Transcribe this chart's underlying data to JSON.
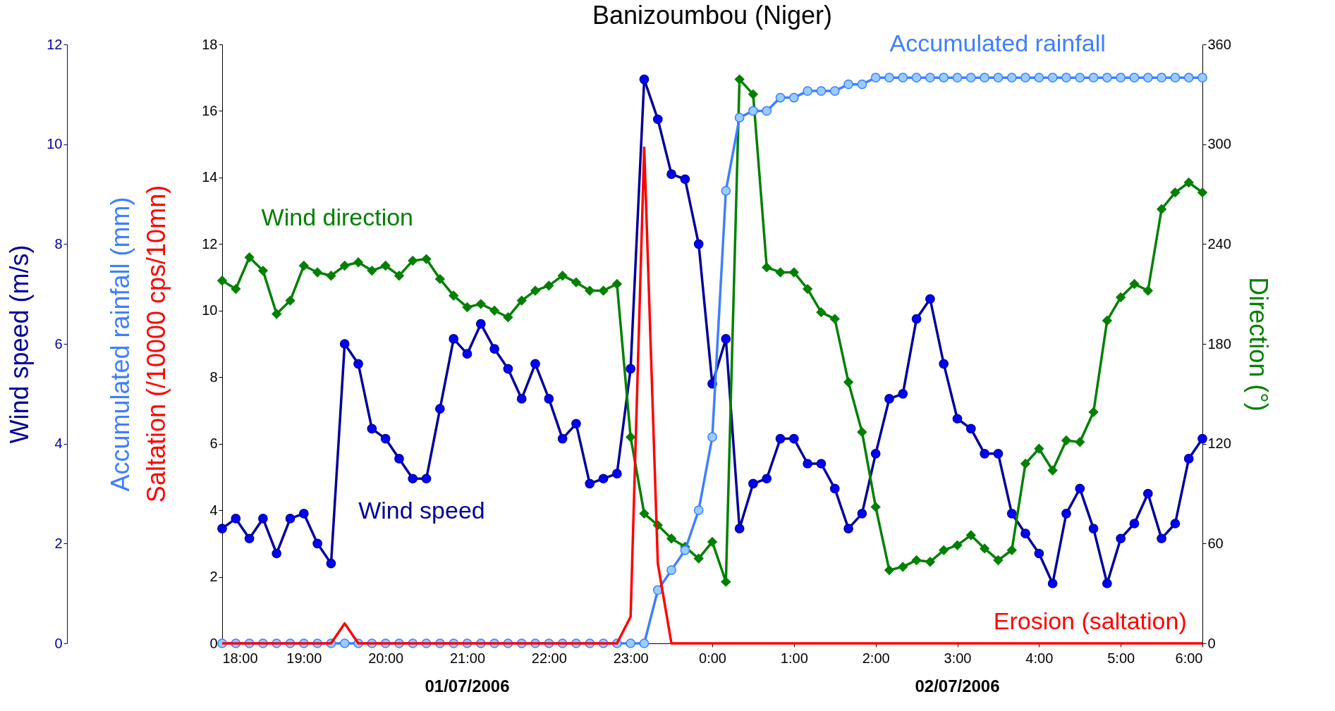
{
  "chart_data": {
    "type": "line",
    "title": "Banizoumbou (Niger)",
    "x": [
      "2006-07-01T18:00",
      "2006-07-01T18:10",
      "2006-07-01T18:20",
      "2006-07-01T18:30",
      "2006-07-01T18:40",
      "2006-07-01T18:50",
      "2006-07-01T19:00",
      "2006-07-01T19:10",
      "2006-07-01T19:20",
      "2006-07-01T19:30",
      "2006-07-01T19:40",
      "2006-07-01T19:50",
      "2006-07-01T20:00",
      "2006-07-01T20:10",
      "2006-07-01T20:20",
      "2006-07-01T20:30",
      "2006-07-01T20:40",
      "2006-07-01T20:50",
      "2006-07-01T21:00",
      "2006-07-01T21:10",
      "2006-07-01T21:20",
      "2006-07-01T21:30",
      "2006-07-01T21:40",
      "2006-07-01T21:50",
      "2006-07-01T22:00",
      "2006-07-01T22:10",
      "2006-07-01T22:20",
      "2006-07-01T22:30",
      "2006-07-01T22:40",
      "2006-07-01T22:50",
      "2006-07-01T23:00",
      "2006-07-01T23:10",
      "2006-07-01T23:20",
      "2006-07-01T23:30",
      "2006-07-01T23:40",
      "2006-07-01T23:50",
      "2006-07-02T00:00",
      "2006-07-02T00:10",
      "2006-07-02T00:20",
      "2006-07-02T00:30",
      "2006-07-02T00:40",
      "2006-07-02T00:50",
      "2006-07-02T01:00",
      "2006-07-02T01:10",
      "2006-07-02T01:20",
      "2006-07-02T01:30",
      "2006-07-02T01:40",
      "2006-07-02T01:50",
      "2006-07-02T02:00",
      "2006-07-02T02:10",
      "2006-07-02T02:20",
      "2006-07-02T02:30",
      "2006-07-02T02:40",
      "2006-07-02T02:50",
      "2006-07-02T03:00",
      "2006-07-02T03:10",
      "2006-07-02T03:20",
      "2006-07-02T03:30",
      "2006-07-02T03:40",
      "2006-07-02T03:50",
      "2006-07-02T04:00",
      "2006-07-02T04:10",
      "2006-07-02T04:20",
      "2006-07-02T04:30",
      "2006-07-02T04:40",
      "2006-07-02T04:50",
      "2006-07-02T05:00",
      "2006-07-02T05:10",
      "2006-07-02T05:20",
      "2006-07-02T05:30",
      "2006-07-02T05:40",
      "2006-07-02T05:50",
      "2006-07-02T06:00"
    ],
    "xlim": [
      "2006-07-01T18:00",
      "2006-07-02T06:00"
    ],
    "xticks": [
      {
        "value": "2006-07-01T18:00",
        "label": "18:00"
      },
      {
        "value": "2006-07-01T19:00",
        "label": "19:00"
      },
      {
        "value": "2006-07-01T20:00",
        "label": "20:00"
      },
      {
        "value": "2006-07-01T21:00",
        "label": "21:00"
      },
      {
        "value": "2006-07-01T22:00",
        "label": "22:00"
      },
      {
        "value": "2006-07-01T23:00",
        "label": "23:00"
      },
      {
        "value": "2006-07-02T00:00",
        "label": "0:00"
      },
      {
        "value": "2006-07-02T01:00",
        "label": "1:00"
      },
      {
        "value": "2006-07-02T02:00",
        "label": "2:00"
      },
      {
        "value": "2006-07-02T03:00",
        "label": "3:00"
      },
      {
        "value": "2006-07-02T04:00",
        "label": "4:00"
      },
      {
        "value": "2006-07-02T05:00",
        "label": "5:00"
      },
      {
        "value": "2006-07-02T06:00",
        "label": "6:00"
      }
    ],
    "ylabel": "Wind speed (m/s)",
    "ylim": [
      0,
      12
    ],
    "yticks": [
      0,
      2,
      4,
      6,
      8,
      10,
      12
    ],
    "y2label": "Direction (°)",
    "y2lim": [
      0,
      360
    ],
    "y2ticks": [
      0,
      60,
      120,
      180,
      240,
      300,
      360
    ],
    "y3label": "Accumulated rainfall (mm)",
    "y3lim": [
      0,
      18
    ],
    "y3ticks": [
      0,
      2,
      4,
      6,
      8,
      10,
      12,
      14,
      16,
      18
    ],
    "annotations": [
      "Saltation (/10000 cps/10mn)",
      "01/07/2006",
      "02/07/2006"
    ],
    "grid": false,
    "series": [
      {
        "name": "Wind speed",
        "color": "#000099",
        "axis": "y",
        "marker": "circle",
        "values": [
          2.3,
          2.5,
          2.1,
          2.5,
          1.8,
          2.5,
          2.6,
          2.0,
          1.6,
          6.0,
          5.6,
          4.3,
          4.1,
          3.7,
          3.3,
          3.3,
          4.7,
          6.1,
          5.8,
          6.4,
          5.9,
          5.5,
          4.9,
          5.6,
          4.9,
          4.1,
          4.4,
          3.2,
          3.3,
          3.4,
          5.5,
          11.3,
          10.5,
          9.4,
          9.3,
          8.0,
          5.2,
          6.1,
          2.3,
          3.2,
          3.3,
          4.1,
          4.1,
          3.6,
          3.6,
          3.1,
          2.3,
          2.6,
          3.8,
          4.9,
          5.0,
          6.5,
          6.9,
          5.6,
          4.5,
          4.3,
          3.8,
          3.8,
          2.6,
          2.2,
          1.8,
          1.2,
          2.6,
          3.1,
          2.3,
          1.2,
          2.1,
          2.4,
          3.0,
          2.1,
          2.4,
          3.7,
          4.1
        ]
      },
      {
        "name": "Wind direction",
        "color": "#008000",
        "axis": "y2",
        "marker": "diamond",
        "values": [
          218,
          213,
          232,
          224,
          198,
          206,
          227,
          223,
          221,
          227,
          229,
          224,
          227,
          221,
          230,
          231,
          219,
          209,
          202,
          204,
          200,
          196,
          206,
          212,
          215,
          221,
          217,
          212,
          212,
          216,
          124,
          78,
          71,
          63,
          58,
          51,
          61,
          37,
          339,
          330,
          226,
          223,
          223,
          213,
          199,
          195,
          157,
          127,
          82,
          44,
          46,
          50,
          49,
          56,
          59,
          65,
          57,
          50,
          56,
          108,
          117,
          104,
          122,
          121,
          139,
          194,
          208,
          216,
          212,
          261,
          271,
          277,
          271
        ]
      },
      {
        "name": "Accumulated rainfall",
        "color": "#3f7fff",
        "axis": "y3",
        "marker": "circle",
        "values": [
          0,
          0,
          0,
          0,
          0,
          0,
          0,
          0,
          0,
          0,
          0,
          0,
          0,
          0,
          0,
          0,
          0,
          0,
          0,
          0,
          0,
          0,
          0,
          0,
          0,
          0,
          0,
          0,
          0,
          0,
          0,
          0,
          1.6,
          2.2,
          2.8,
          4.0,
          6.2,
          13.6,
          15.8,
          16.0,
          16.0,
          16.4,
          16.4,
          16.6,
          16.6,
          16.6,
          16.8,
          16.8,
          17.0,
          17.0,
          17.0,
          17.0,
          17.0,
          17.0,
          17.0,
          17.0,
          17.0,
          17.0,
          17.0,
          17.0,
          17.0,
          17.0,
          17.0,
          17.0,
          17.0,
          17.0,
          17.0,
          17.0,
          17.0,
          17.0,
          17.0,
          17.0,
          17.0
        ]
      },
      {
        "name": "Erosion (saltation)",
        "color": "#ff0000",
        "axis": "y3",
        "marker": "none",
        "values": [
          0,
          0,
          0,
          0,
          0,
          0,
          0,
          0,
          0,
          0.6,
          0,
          0,
          0,
          0,
          0,
          0,
          0,
          0,
          0,
          0,
          0,
          0,
          0,
          0,
          0,
          0,
          0,
          0,
          0,
          0,
          0.8,
          14.9,
          2.4,
          0,
          0,
          0,
          0,
          0,
          0,
          0,
          0,
          0,
          0,
          0,
          0,
          0,
          0,
          0,
          0,
          0,
          0,
          0,
          0,
          0,
          0,
          0,
          0,
          0,
          0,
          0,
          0,
          0,
          0,
          0,
          0,
          0,
          0,
          0,
          0,
          0,
          0,
          0,
          0
        ]
      }
    ]
  }
}
